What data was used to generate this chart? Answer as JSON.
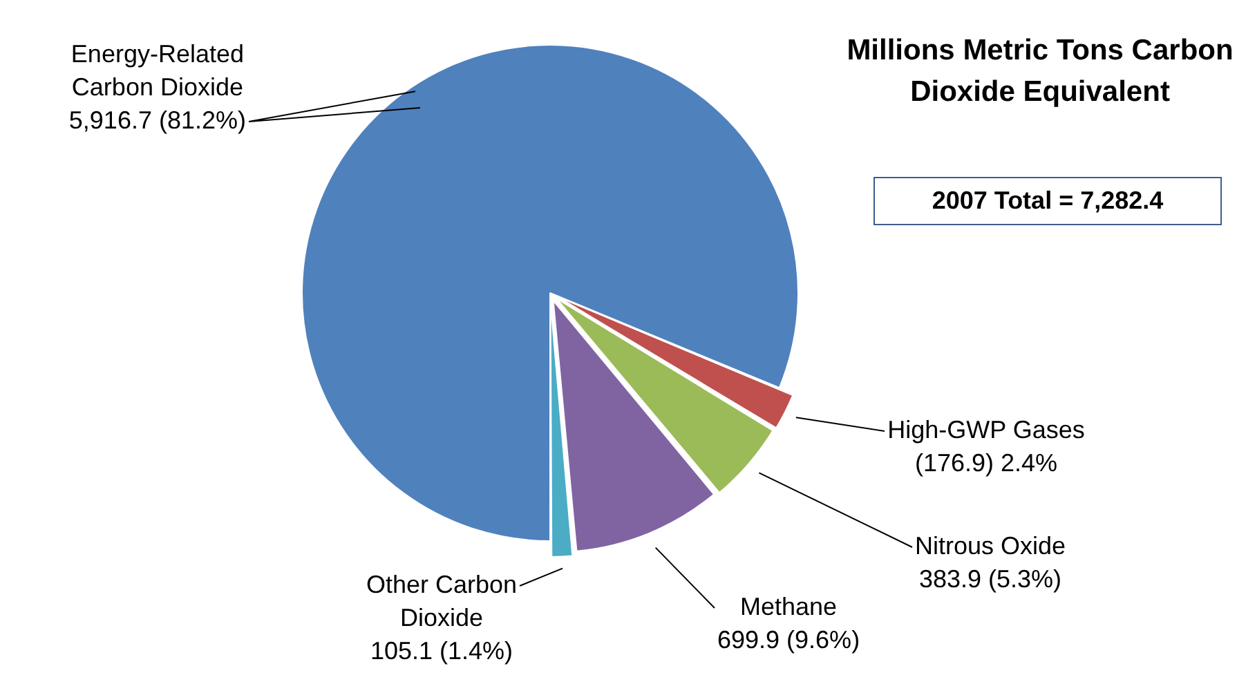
{
  "chart_data": {
    "type": "pie",
    "title": "Millions Metric Tons Carbon Dioxide Equivalent",
    "categories": [
      "Energy-Related Carbon Dioxide",
      "High-GWP Gases",
      "Nitrous Oxide",
      "Methane",
      "Other Carbon Dioxide"
    ],
    "values": [
      5916.7,
      176.9,
      383.9,
      699.9,
      105.1
    ],
    "value_labels": [
      "5,916.7 (81.2%)",
      "(176.9) 2.4%",
      "383.9 (5.3%)",
      "699.9 (9.6%)",
      "105.1 (1.4%)"
    ],
    "colors": [
      "#4f81bd",
      "#c0504d",
      "#9bbb59",
      "#8064a2",
      "#4bacc6"
    ],
    "annotations": [
      "2007 Total = 7,282.4"
    ],
    "legend": false
  }
}
